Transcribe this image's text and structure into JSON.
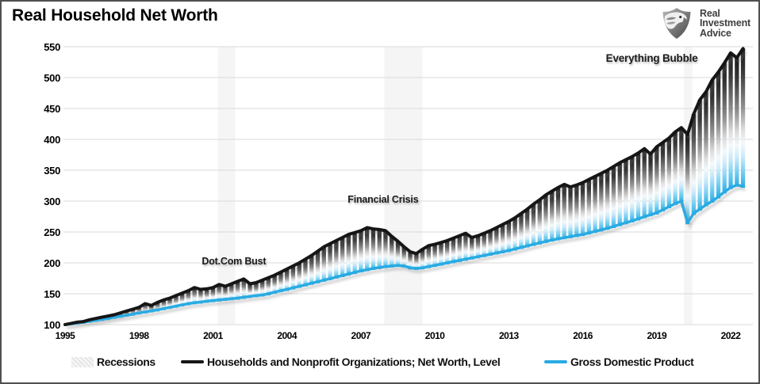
{
  "header": {
    "title": "Real Household Net Worth",
    "logo_lines": [
      "Real",
      "Investment",
      "Advice"
    ]
  },
  "chart_data": {
    "type": "line",
    "title": "Real Household Net Worth",
    "xlabel": "",
    "ylabel": "",
    "xlim": [
      1995,
      2022.9
    ],
    "ylim": [
      100,
      550
    ],
    "x_ticks": [
      1995,
      1998,
      2001,
      2004,
      2007,
      2010,
      2013,
      2016,
      2019,
      2022
    ],
    "y_ticks": [
      100,
      150,
      200,
      250,
      300,
      350,
      400,
      450,
      500,
      550
    ],
    "grid": "horizontal",
    "legend_position": "bottom",
    "x_start": 1995,
    "x_step": 0.25,
    "fill_between": "vertical-gradient-bars",
    "series": [
      {
        "name": "Households and Nonprofit Organizations; Net Worth, Level",
        "color": "#161616",
        "values": [
          100,
          102,
          104,
          105,
          108,
          110,
          112,
          114,
          116,
          119,
          122,
          125,
          128,
          134,
          131,
          136,
          140,
          143,
          147,
          151,
          155,
          160,
          157,
          158,
          160,
          165,
          162,
          166,
          170,
          174,
          166,
          168,
          172,
          176,
          180,
          185,
          190,
          195,
          200,
          206,
          212,
          219,
          226,
          231,
          236,
          241,
          246,
          249,
          252,
          257,
          255,
          254,
          252,
          243,
          235,
          226,
          218,
          215,
          222,
          228,
          230,
          233,
          236,
          240,
          244,
          248,
          241,
          244,
          248,
          252,
          257,
          262,
          267,
          273,
          280,
          287,
          295,
          302,
          310,
          316,
          322,
          327,
          323,
          326,
          330,
          335,
          340,
          345,
          350,
          356,
          362,
          367,
          372,
          378,
          385,
          376,
          388,
          395,
          402,
          412,
          419,
          408,
          441,
          464,
          477,
          496,
          509,
          524,
          540,
          532,
          547
        ]
      },
      {
        "name": "Gross Domestic Product",
        "color": "#29abe2",
        "values": [
          100,
          101.3,
          102.7,
          104,
          105.5,
          107,
          108.5,
          110,
          112,
          113.7,
          115.3,
          117,
          119,
          120.7,
          122.3,
          124,
          126,
          128,
          130,
          132,
          134,
          135.5,
          136.5,
          138,
          139,
          140,
          141,
          142,
          143,
          144.3,
          145.7,
          147,
          148,
          150,
          152.5,
          155,
          157,
          159.5,
          162,
          164.5,
          167,
          169.5,
          172,
          174.5,
          177,
          179.5,
          182,
          184.5,
          187,
          189,
          191,
          192.5,
          194,
          195,
          196,
          195,
          192,
          191,
          192,
          194,
          196,
          198,
          200,
          202,
          204,
          206,
          208,
          210,
          212,
          214,
          216,
          218,
          220,
          222.5,
          225,
          227.5,
          230,
          232.3,
          234.7,
          237,
          239,
          240.8,
          242.5,
          244.3,
          246,
          248.5,
          251,
          253.5,
          256,
          259,
          262,
          265,
          268,
          271.3,
          274.7,
          278,
          281,
          286,
          291,
          296,
          300,
          265,
          280,
          287,
          294,
          300,
          307,
          315,
          322,
          326,
          324
        ]
      }
    ],
    "recessions": {
      "label": "Recessions",
      "color": "#f5f5f5",
      "bands": [
        [
          2001.2,
          2001.9
        ],
        [
          2007.95,
          2009.5
        ],
        [
          2020.1,
          2020.45
        ]
      ]
    },
    "annotations": [
      {
        "text": "Dot.Com Bust",
        "x": 2001.85,
        "y": 200
      },
      {
        "text": "Financial Crisis",
        "x": 2007.9,
        "y": 300
      },
      {
        "text": "Everything Bubble",
        "x": 2018.8,
        "y": 529
      }
    ],
    "gridline_color": "#d9d9d9"
  }
}
